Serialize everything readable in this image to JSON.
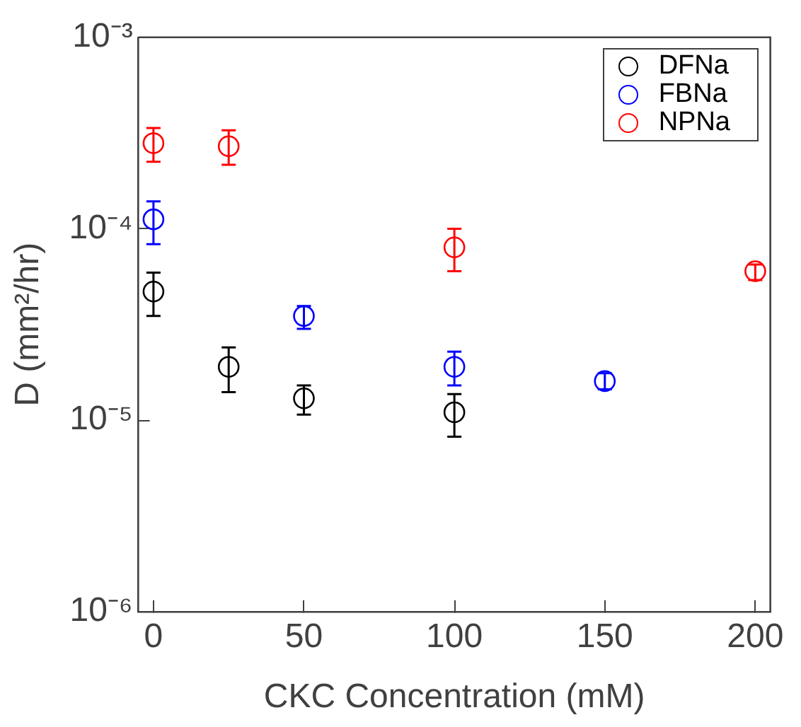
{
  "chart_data": {
    "type": "scatter",
    "xlabel": "CKC Concentration (mM)",
    "ylabel": "D (mm²/hr)",
    "log": "y",
    "xlim": [
      -5,
      205
    ],
    "xticks": [
      0,
      50,
      100,
      150,
      200
    ],
    "ylim": [
      1e-06,
      0.001
    ],
    "yticks": [
      {
        "value": 1e-06,
        "label": "10⁻⁶"
      },
      {
        "value": 1e-05,
        "label": "10⁻⁵"
      },
      {
        "value": 0.0001,
        "label": "10⁻⁴"
      },
      {
        "value": 0.001,
        "label": "10⁻³"
      }
    ],
    "grid": false,
    "legend": "top right",
    "marker": "circle",
    "series": [
      {
        "name": "DFNa",
        "color": "#000000",
        "x": [
          0,
          25,
          50,
          100
        ],
        "values": [
          4.7e-05,
          1.9e-05,
          1.3e-05,
          1.1e-05
        ],
        "errors": [
          [
            3.5e-05,
            5.9e-05
          ],
          [
            1.4e-05,
            2.4e-05
          ],
          [
            1.07e-05,
            1.52e-05
          ],
          [
            8.2e-06,
            1.37e-05
          ]
        ]
      },
      {
        "name": "FBNa",
        "color": "#0000ff",
        "x": [
          0,
          50,
          100,
          150
        ],
        "values": [
          0.000112,
          3.5e-05,
          1.9e-05,
          1.6e-05
        ],
        "errors": [
          [
            8.3e-05,
            0.000139
          ],
          [
            3e-05,
            3.95e-05
          ],
          [
            1.52e-05,
            2.28e-05
          ],
          [
            1.45e-05,
            1.76e-05
          ]
        ]
      },
      {
        "name": "NPNa",
        "color": "#ff0000",
        "x": [
          0,
          25,
          100,
          200
        ],
        "values": [
          0.00028,
          0.00027,
          8e-05,
          6e-05
        ],
        "errors": [
          [
            0.000224,
            0.000336
          ],
          [
            0.000216,
            0.000327
          ],
          [
            6e-05,
            0.0001
          ],
          [
            5.4e-05,
            6.5e-05
          ]
        ]
      }
    ]
  }
}
